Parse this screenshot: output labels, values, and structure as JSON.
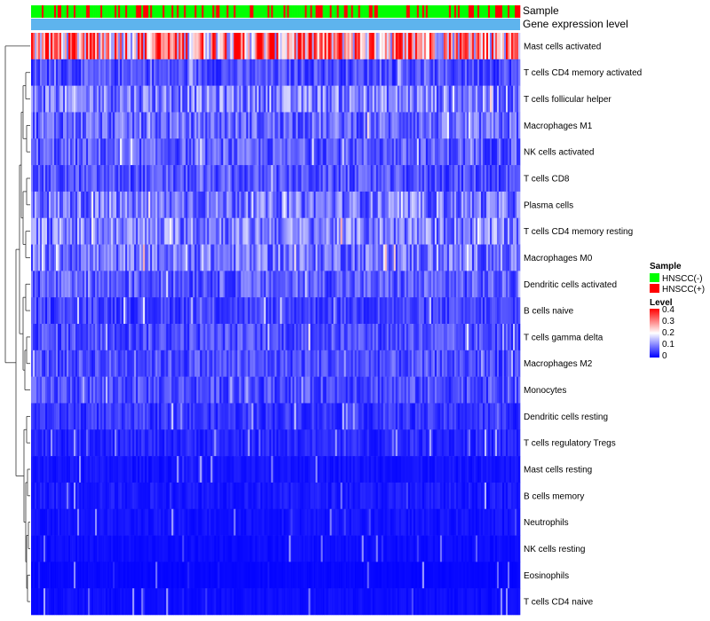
{
  "chart_data": {
    "type": "heatmap",
    "title": "",
    "annotation_tracks": [
      {
        "name": "Sample",
        "label": "Sample"
      },
      {
        "name": "Gene expression level",
        "label": "Gene expression level",
        "color": "#5eb4ee"
      }
    ],
    "rows": [
      {
        "label": "Mast cells activated",
        "mean": 0.28
      },
      {
        "label": "T cells CD4 memory activated",
        "mean": 0.06
      },
      {
        "label": "T cells follicular helper",
        "mean": 0.1
      },
      {
        "label": "Macrophages M1",
        "mean": 0.08
      },
      {
        "label": "NK cells activated",
        "mean": 0.07
      },
      {
        "label": "T cells CD8",
        "mean": 0.06
      },
      {
        "label": "Plasma cells",
        "mean": 0.09
      },
      {
        "label": "T cells CD4 memory resting",
        "mean": 0.1
      },
      {
        "label": "Macrophages M0",
        "mean": 0.09
      },
      {
        "label": "Dendritic cells activated",
        "mean": 0.07
      },
      {
        "label": "B cells naive",
        "mean": 0.05
      },
      {
        "label": "T cells gamma delta",
        "mean": 0.06
      },
      {
        "label": "Macrophages M2",
        "mean": 0.06
      },
      {
        "label": "Monocytes",
        "mean": 0.06
      },
      {
        "label": "Dendritic cells resting",
        "mean": 0.04
      },
      {
        "label": "T cells regulatory  Tregs",
        "mean": 0.03
      },
      {
        "label": "Mast cells resting",
        "mean": 0.015
      },
      {
        "label": "B cells memory",
        "mean": 0.02
      },
      {
        "label": "Neutrophils",
        "mean": 0.015
      },
      {
        "label": "NK cells resting",
        "mean": 0.01
      },
      {
        "label": "Eosinophils",
        "mean": 0.005
      },
      {
        "label": "T cells CD4 naive",
        "mean": 0.01
      }
    ],
    "n_samples": 275,
    "legend": {
      "sample_title": "Sample",
      "sample_entries": [
        {
          "label": "HNSCC(-)",
          "color": "#00ff00"
        },
        {
          "label": "HNSCC(+)",
          "color": "#ff0000"
        }
      ],
      "level_title": "Level",
      "level_ticks": [
        "0.4",
        "0.3",
        "0.2",
        "0.1",
        "0"
      ],
      "level_range": [
        0,
        0.4
      ],
      "colors": {
        "low": "#0000ff",
        "mid": "#ffffff",
        "high": "#ff0000"
      }
    }
  }
}
